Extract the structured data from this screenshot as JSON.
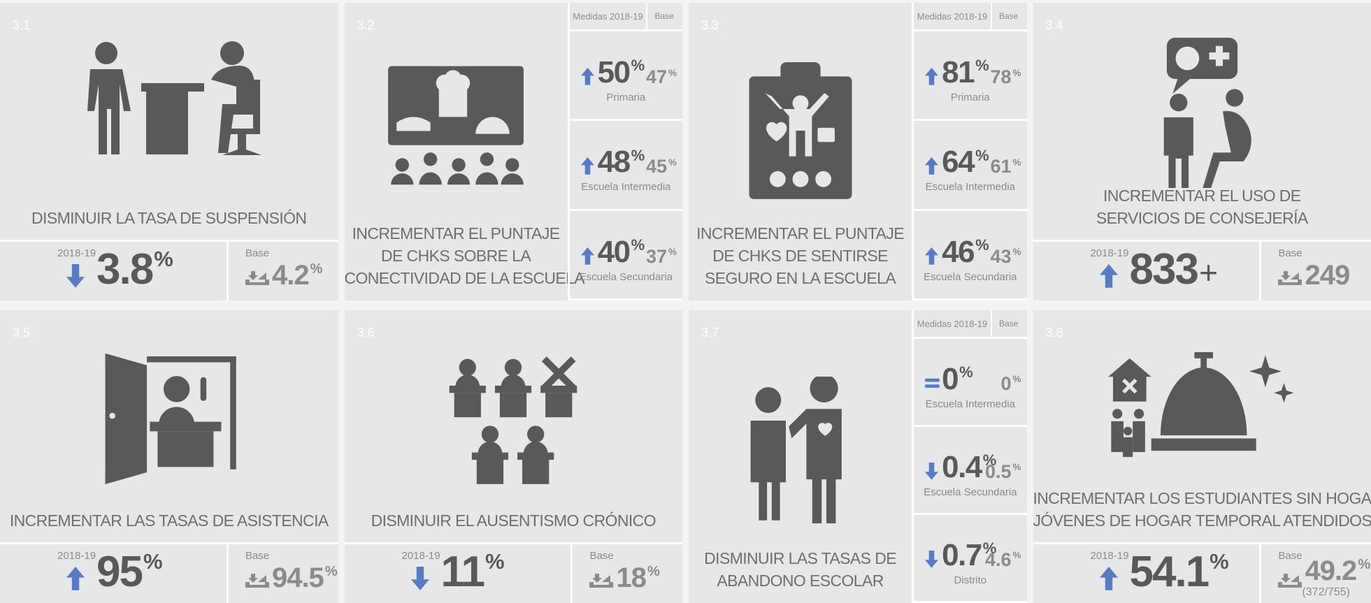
{
  "cards": [
    {
      "number": "3.1",
      "title_lines": [
        "DISMINUIR LA TASA DE SUSPENSIÓN"
      ],
      "current": {
        "label": "2018-19",
        "value": 3.8,
        "unit": "%",
        "trend": "down"
      },
      "base": {
        "label": "Base",
        "value": 4.2,
        "unit": "%"
      }
    },
    {
      "number": "3.2",
      "title_lines": [
        "INCREMENTAR EL PUNTAJE",
        "DE CHKS SOBRE LA",
        "CONECTIVIDAD DE LA ESCUELA"
      ],
      "measures_header": "Medidas 2018-19",
      "base_header": "Base",
      "rows": [
        {
          "value": 50,
          "unit": "%",
          "base": 47,
          "base_unit": "%",
          "level": "Primaria",
          "trend": "up"
        },
        {
          "value": 48,
          "unit": "%",
          "base": 45,
          "base_unit": "%",
          "level": "Escuela Intermedia",
          "trend": "up"
        },
        {
          "value": 40,
          "unit": "%",
          "base": 37,
          "base_unit": "%",
          "level": "Escuela Secundaria",
          "trend": "up"
        }
      ]
    },
    {
      "number": "3.3",
      "title_lines": [
        "INCREMENTAR EL PUNTAJE",
        "DE CHKS DE SENTIRSE",
        "SEGURO EN LA ESCUELA"
      ],
      "measures_header": "Medidas 2018-19",
      "base_header": "Base",
      "rows": [
        {
          "value": 81,
          "unit": "%",
          "base": 78,
          "base_unit": "%",
          "level": "Primaria",
          "trend": "up"
        },
        {
          "value": 64,
          "unit": "%",
          "base": 61,
          "base_unit": "%",
          "level": "Escuela Intermedia",
          "trend": "up"
        },
        {
          "value": 46,
          "unit": "%",
          "base": 43,
          "base_unit": "%",
          "level": "Escuela Secundaria",
          "trend": "up"
        }
      ]
    },
    {
      "number": "3.4",
      "title_lines": [
        "INCREMENTAR EL USO DE",
        "SERVICIOS DE CONSEJERÍA"
      ],
      "current": {
        "label": "2018-19",
        "value": 833,
        "unit": "+",
        "trend": "up"
      },
      "base": {
        "label": "Base",
        "value": 249
      }
    },
    {
      "number": "3.5",
      "title_lines": [
        "INCREMENTAR LAS TASAS DE ASISTENCIA"
      ],
      "current": {
        "label": "2018-19",
        "value": 95,
        "unit": "%",
        "trend": "up"
      },
      "base": {
        "label": "Base",
        "value": 94.5,
        "unit": "%"
      }
    },
    {
      "number": "3.6",
      "title_lines": [
        "DISMINUIR EL AUSENTISMO CRÓNICO"
      ],
      "current": {
        "label": "2018-19",
        "value": 11,
        "unit": "%",
        "trend": "down"
      },
      "base": {
        "label": "Base",
        "value": 18,
        "unit": "%"
      }
    },
    {
      "number": "3.7",
      "title_lines": [
        "DISMINUIR LAS TASAS DE",
        "ABANDONO ESCOLAR"
      ],
      "measures_header": "Medidas 2018-19",
      "base_header": "Base",
      "rows": [
        {
          "value": 0,
          "unit": "%",
          "base": 0,
          "base_unit": "%",
          "level": "Escuela Intermedia",
          "trend": "equal"
        },
        {
          "value": 0.4,
          "unit": "%",
          "base": 0.5,
          "base_unit": "%",
          "level": "Escuela Secundaria",
          "trend": "down"
        },
        {
          "value": 0.7,
          "unit": "%",
          "base": 4.6,
          "base_unit": "%",
          "level": "Distrito",
          "trend": "down"
        }
      ]
    },
    {
      "number": "3.8",
      "title_lines": [
        "INCREMENTAR LOS ESTUDIANTES SIN HOGAR/",
        "JÓVENES DE HOGAR TEMPORAL ATENDIDOS"
      ],
      "current": {
        "label": "2018-19",
        "value": 54.1,
        "unit": "%",
        "trend": "up"
      },
      "base": {
        "label": "Base",
        "value": 49.2,
        "unit": "%",
        "note": "(372/755)"
      }
    }
  ]
}
